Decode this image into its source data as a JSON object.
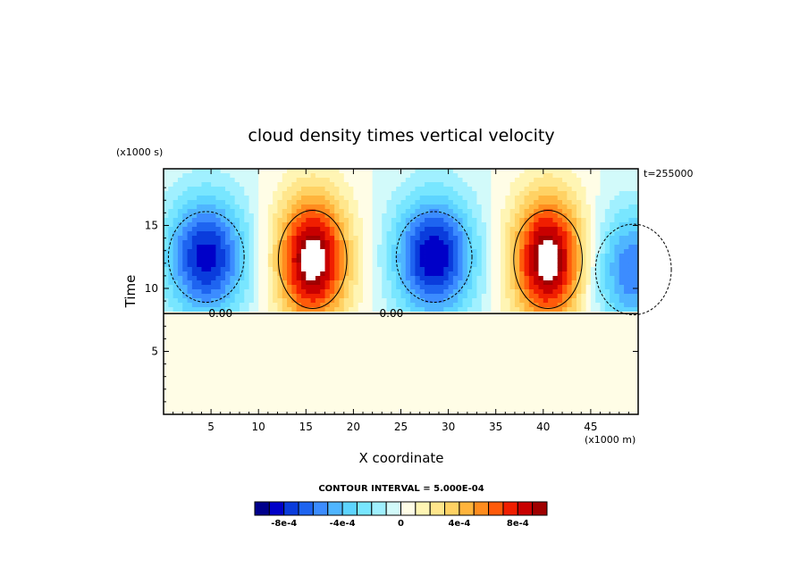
{
  "chart_data": {
    "type": "heatmap",
    "title": "cloud density times vertical velocity",
    "xlabel": "X coordinate",
    "ylabel": "Time",
    "x_unit": "(x1000 m)",
    "y_unit": "(x1000 s)",
    "time_stamp": "t=255000",
    "xlim": [
      0,
      50
    ],
    "ylim": [
      0,
      19.5
    ],
    "x_ticks": [
      5,
      10,
      15,
      20,
      25,
      30,
      35,
      40,
      45
    ],
    "y_ticks": [
      5,
      10,
      15
    ],
    "contour_labels": [
      {
        "text": "0.00",
        "x": 6,
        "y": 8.0
      },
      {
        "text": "0.00",
        "x": 24,
        "y": 8.0
      }
    ],
    "background_value": 0,
    "zero_line_y": 8.0,
    "features": [
      {
        "kind": "negative",
        "x": 4.5,
        "y": 12.5,
        "peak": -0.00085
      },
      {
        "kind": "positive",
        "x": 15.7,
        "y": 12.3,
        "peak": 0.00105
      },
      {
        "kind": "negative",
        "x": 28.5,
        "y": 12.5,
        "peak": -0.0009
      },
      {
        "kind": "positive",
        "x": 40.5,
        "y": 12.3,
        "peak": 0.00105
      },
      {
        "kind": "negative",
        "x": 49.5,
        "y": 11.5,
        "peak": -0.0006
      }
    ],
    "colorbar": {
      "title": "CONTOUR INTERVAL = 5.000E-04",
      "tick_labels": [
        "-8e-4",
        "-4e-4",
        "0",
        "4e-4",
        "8e-4"
      ],
      "levels": [
        -0.001,
        -0.0009,
        -0.0008,
        -0.0007,
        -0.0006,
        -0.0005,
        -0.0004,
        -0.0003,
        -0.0002,
        -0.0001,
        0,
        0.0001,
        0.0002,
        0.0003,
        0.0004,
        0.0005,
        0.0006,
        0.0007,
        0.0008,
        0.0009,
        0.001
      ],
      "colors": [
        "#00008c",
        "#0000c8",
        "#0a3cdc",
        "#1e64f0",
        "#3c8cff",
        "#4fb5ff",
        "#5dd4ff",
        "#78e6ff",
        "#a0f0ff",
        "#d2fafa",
        "#fffde6",
        "#fff5b4",
        "#ffe68c",
        "#ffd264",
        "#ffb43c",
        "#ff8c1e",
        "#ff5a0a",
        "#f01e00",
        "#c80000",
        "#a00000"
      ]
    }
  }
}
